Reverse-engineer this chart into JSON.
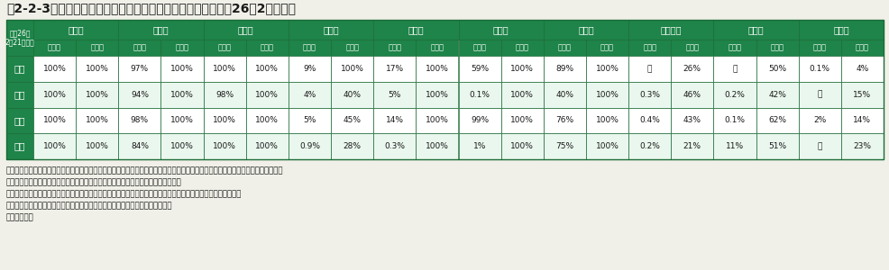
{
  "title": "表2-2-3　除染特別地域における国直轄除染の進捗状況（平成26年2月時点）",
  "green_dark": "#1e8449",
  "green_mid": "#27ae60",
  "green_header": "#2ecc71",
  "white": "#ffffff",
  "bg_color": "#f0f0e8",
  "text_dark": "#1a1a1a",
  "cities": [
    "田村市",
    "楢葉町",
    "川内村",
    "飯舘村",
    "川俣町",
    "葛尾村",
    "大熊町",
    "南相馬市",
    "富岡町",
    "浪江町"
  ],
  "top_left_label": "平成26年\n2月21日現在",
  "sub_headers": [
    "実施率",
    "発注率"
  ],
  "row_labels": [
    "宅地",
    "農地",
    "森林",
    "道路"
  ],
  "data": [
    [
      "100%",
      "100%",
      "97%",
      "100%",
      "100%",
      "100%",
      "9%",
      "100%",
      "17%",
      "100%",
      "59%",
      "100%",
      "89%",
      "100%",
      "－",
      "26%",
      "－",
      "50%",
      "0.1%",
      "4%"
    ],
    [
      "100%",
      "100%",
      "94%",
      "100%",
      "98%",
      "100%",
      "4%",
      "40%",
      "5%",
      "100%",
      "0.1%",
      "100%",
      "40%",
      "100%",
      "0.3%",
      "46%",
      "0.2%",
      "42%",
      "－",
      "15%"
    ],
    [
      "100%",
      "100%",
      "98%",
      "100%",
      "100%",
      "100%",
      "5%",
      "45%",
      "14%",
      "100%",
      "99%",
      "100%",
      "76%",
      "100%",
      "0.4%",
      "43%",
      "0.1%",
      "62%",
      "2%",
      "14%"
    ],
    [
      "100%",
      "100%",
      "84%",
      "100%",
      "100%",
      "100%",
      "0.9%",
      "28%",
      "0.3%",
      "100%",
      "1%",
      "100%",
      "75%",
      "100%",
      "0.2%",
      "21%",
      "11%",
      "51%",
      "－",
      "23%"
    ]
  ],
  "notes": [
    "注１：実施率は、当該市町村の除染対象の面積等に対する、一連の除染行為（除草、堆積物除法、洗浄等）が終了した面積等の割合。",
    "　２：発注率は、当該市町村の除染対象の面積等に対する、契約済の面積等の割合。",
    "　３：除染対象の面積等・発注面積等・除染行為が終了した面積等は、いずれも今後の精査によって変わりうる。",
    "　４：「－」は、除染等工事は契約済であり、一部作業に着手済の状況を示す。"
  ],
  "source": "資料：環境省"
}
